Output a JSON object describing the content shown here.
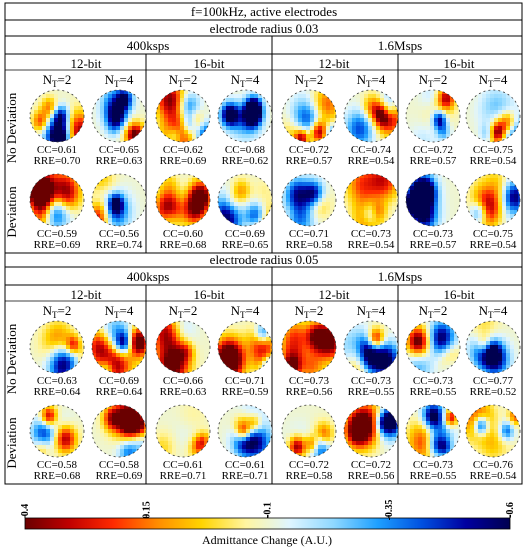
{
  "title": "f=100kHz,  active electrodes",
  "sections": [
    {
      "radius_label": "electrode radius 0.03",
      "rates": [
        "400ksps",
        "1.6Msps"
      ],
      "bits": [
        "12-bit",
        "16-bit",
        "12-bit",
        "16-bit"
      ],
      "nt": [
        "N",
        "T",
        "=2",
        "=4"
      ],
      "rows": [
        {
          "label": "No Deviation",
          "cells": [
            {
              "cc": "CC=0.61",
              "rre": "RRE=0.70"
            },
            {
              "cc": "CC=0.65",
              "rre": "RRE=0.63"
            },
            {
              "cc": "CC=0.62",
              "rre": "RRE=0.69"
            },
            {
              "cc": "CC=0.68",
              "rre": "RRE=0.62"
            },
            {
              "cc": "CC=0.72",
              "rre": "RRE=0.57"
            },
            {
              "cc": "CC=0.74",
              "rre": "RRE=0.54"
            },
            {
              "cc": "CC=0.72",
              "rre": "RRE=0.57"
            },
            {
              "cc": "CC=0.75",
              "rre": "RRE=0.54"
            }
          ]
        },
        {
          "label": "Deviation",
          "cells": [
            {
              "cc": "CC=0.59",
              "rre": "RRE=0.69"
            },
            {
              "cc": "CC=0.56",
              "rre": "RRE=0.74"
            },
            {
              "cc": "CC=0.60",
              "rre": "RRE=0.68"
            },
            {
              "cc": "CC=0.69",
              "rre": "RRE=0.65"
            },
            {
              "cc": "CC=0.71",
              "rre": "RRE=0.58"
            },
            {
              "cc": "CC=0.73",
              "rre": "RRE=0.54"
            },
            {
              "cc": "CC=0.73",
              "rre": "RRE=0.57"
            },
            {
              "cc": "CC=0.75",
              "rre": "RRE=0.54"
            }
          ]
        }
      ]
    },
    {
      "radius_label": "electrode radius 0.05",
      "rates": [
        "400ksps",
        "1.6Msps"
      ],
      "bits": [
        "12-bit",
        "16-bit",
        "12-bit",
        "16-bit"
      ],
      "nt": [
        "N",
        "T",
        "=2",
        "=4"
      ],
      "rows": [
        {
          "label": "No Deviation",
          "cells": [
            {
              "cc": "CC=0.63",
              "rre": "RRE=0.64"
            },
            {
              "cc": "CC=0.69",
              "rre": "RRE=0.64"
            },
            {
              "cc": "CC=0.66",
              "rre": "RRE=0.63"
            },
            {
              "cc": "CC=0.71",
              "rre": "RRE=0.59"
            },
            {
              "cc": "CC=0.73",
              "rre": "RRE=0.56"
            },
            {
              "cc": "CC=0.73",
              "rre": "RRE=0.55"
            },
            {
              "cc": "CC=0.73",
              "rre": "RRE=0.55"
            },
            {
              "cc": "CC=0.77",
              "rre": "RRE=0.52"
            }
          ]
        },
        {
          "label": "Deviation",
          "cells": [
            {
              "cc": "CC=0.58",
              "rre": "RRE=0.68"
            },
            {
              "cc": "CC=0.58",
              "rre": "RRE=0.69"
            },
            {
              "cc": "CC=0.61",
              "rre": "RRE=0.71"
            },
            {
              "cc": "CC=0.61",
              "rre": "RRE=0.71"
            },
            {
              "cc": "CC=0.72",
              "rre": "RRE=0.58"
            },
            {
              "cc": "CC=0.72",
              "rre": "RRE=0.56"
            },
            {
              "cc": "CC=0.73",
              "rre": "RRE=0.55"
            },
            {
              "cc": "CC=0.76",
              "rre": "RRE=0.54"
            }
          ]
        }
      ]
    }
  ],
  "colorbar": {
    "ticks": [
      "0.4",
      "0.15",
      "-0.1",
      "-0.35",
      "-0.6"
    ],
    "label": "Admittance Change (A.U.)",
    "stops": [
      "#6a0000",
      "#c00000",
      "#ff2a00",
      "#ff8c00",
      "#ffd400",
      "#fff5a0",
      "#dff5ff",
      "#8fd8ff",
      "#1ea0ff",
      "#0050e0",
      "#0000a0",
      "#000050"
    ]
  }
}
